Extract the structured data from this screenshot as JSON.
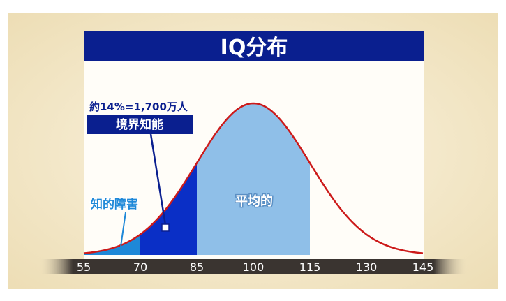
{
  "chart_data": {
    "type": "area",
    "title": "IQ分布",
    "xlabel": "",
    "ylabel": "",
    "xlim": [
      55,
      145
    ],
    "x_ticks": [
      55,
      70,
      85,
      100,
      115,
      130,
      145
    ],
    "x_tick_labels": [
      "55",
      "70",
      "85",
      "100",
      "115",
      "130",
      "145"
    ],
    "distribution": {
      "kind": "normal",
      "mean": 100,
      "sd": 15
    },
    "regions": [
      {
        "name": "知的障害",
        "from": 55,
        "to": 70,
        "color": "#1e88d8"
      },
      {
        "name": "境界知能",
        "from": 70,
        "to": 85,
        "color": "#0a2fc6"
      },
      {
        "name": "平均的",
        "from": 85,
        "to": 115,
        "color": "#8fbfe8"
      }
    ],
    "annotations": {
      "borderline_stat": "約14%=1,700万人",
      "borderline_label": "境界知能",
      "disability_label": "知的障害",
      "average_label": "平均的"
    },
    "grid": false,
    "legend": "none"
  },
  "colors": {
    "curve": "#cc1a1a",
    "title_bar": "#0a1f8f",
    "outer_background": "#f2e6c4",
    "plot_background": "#fffdf8",
    "axis_band": "#3a3430"
  }
}
